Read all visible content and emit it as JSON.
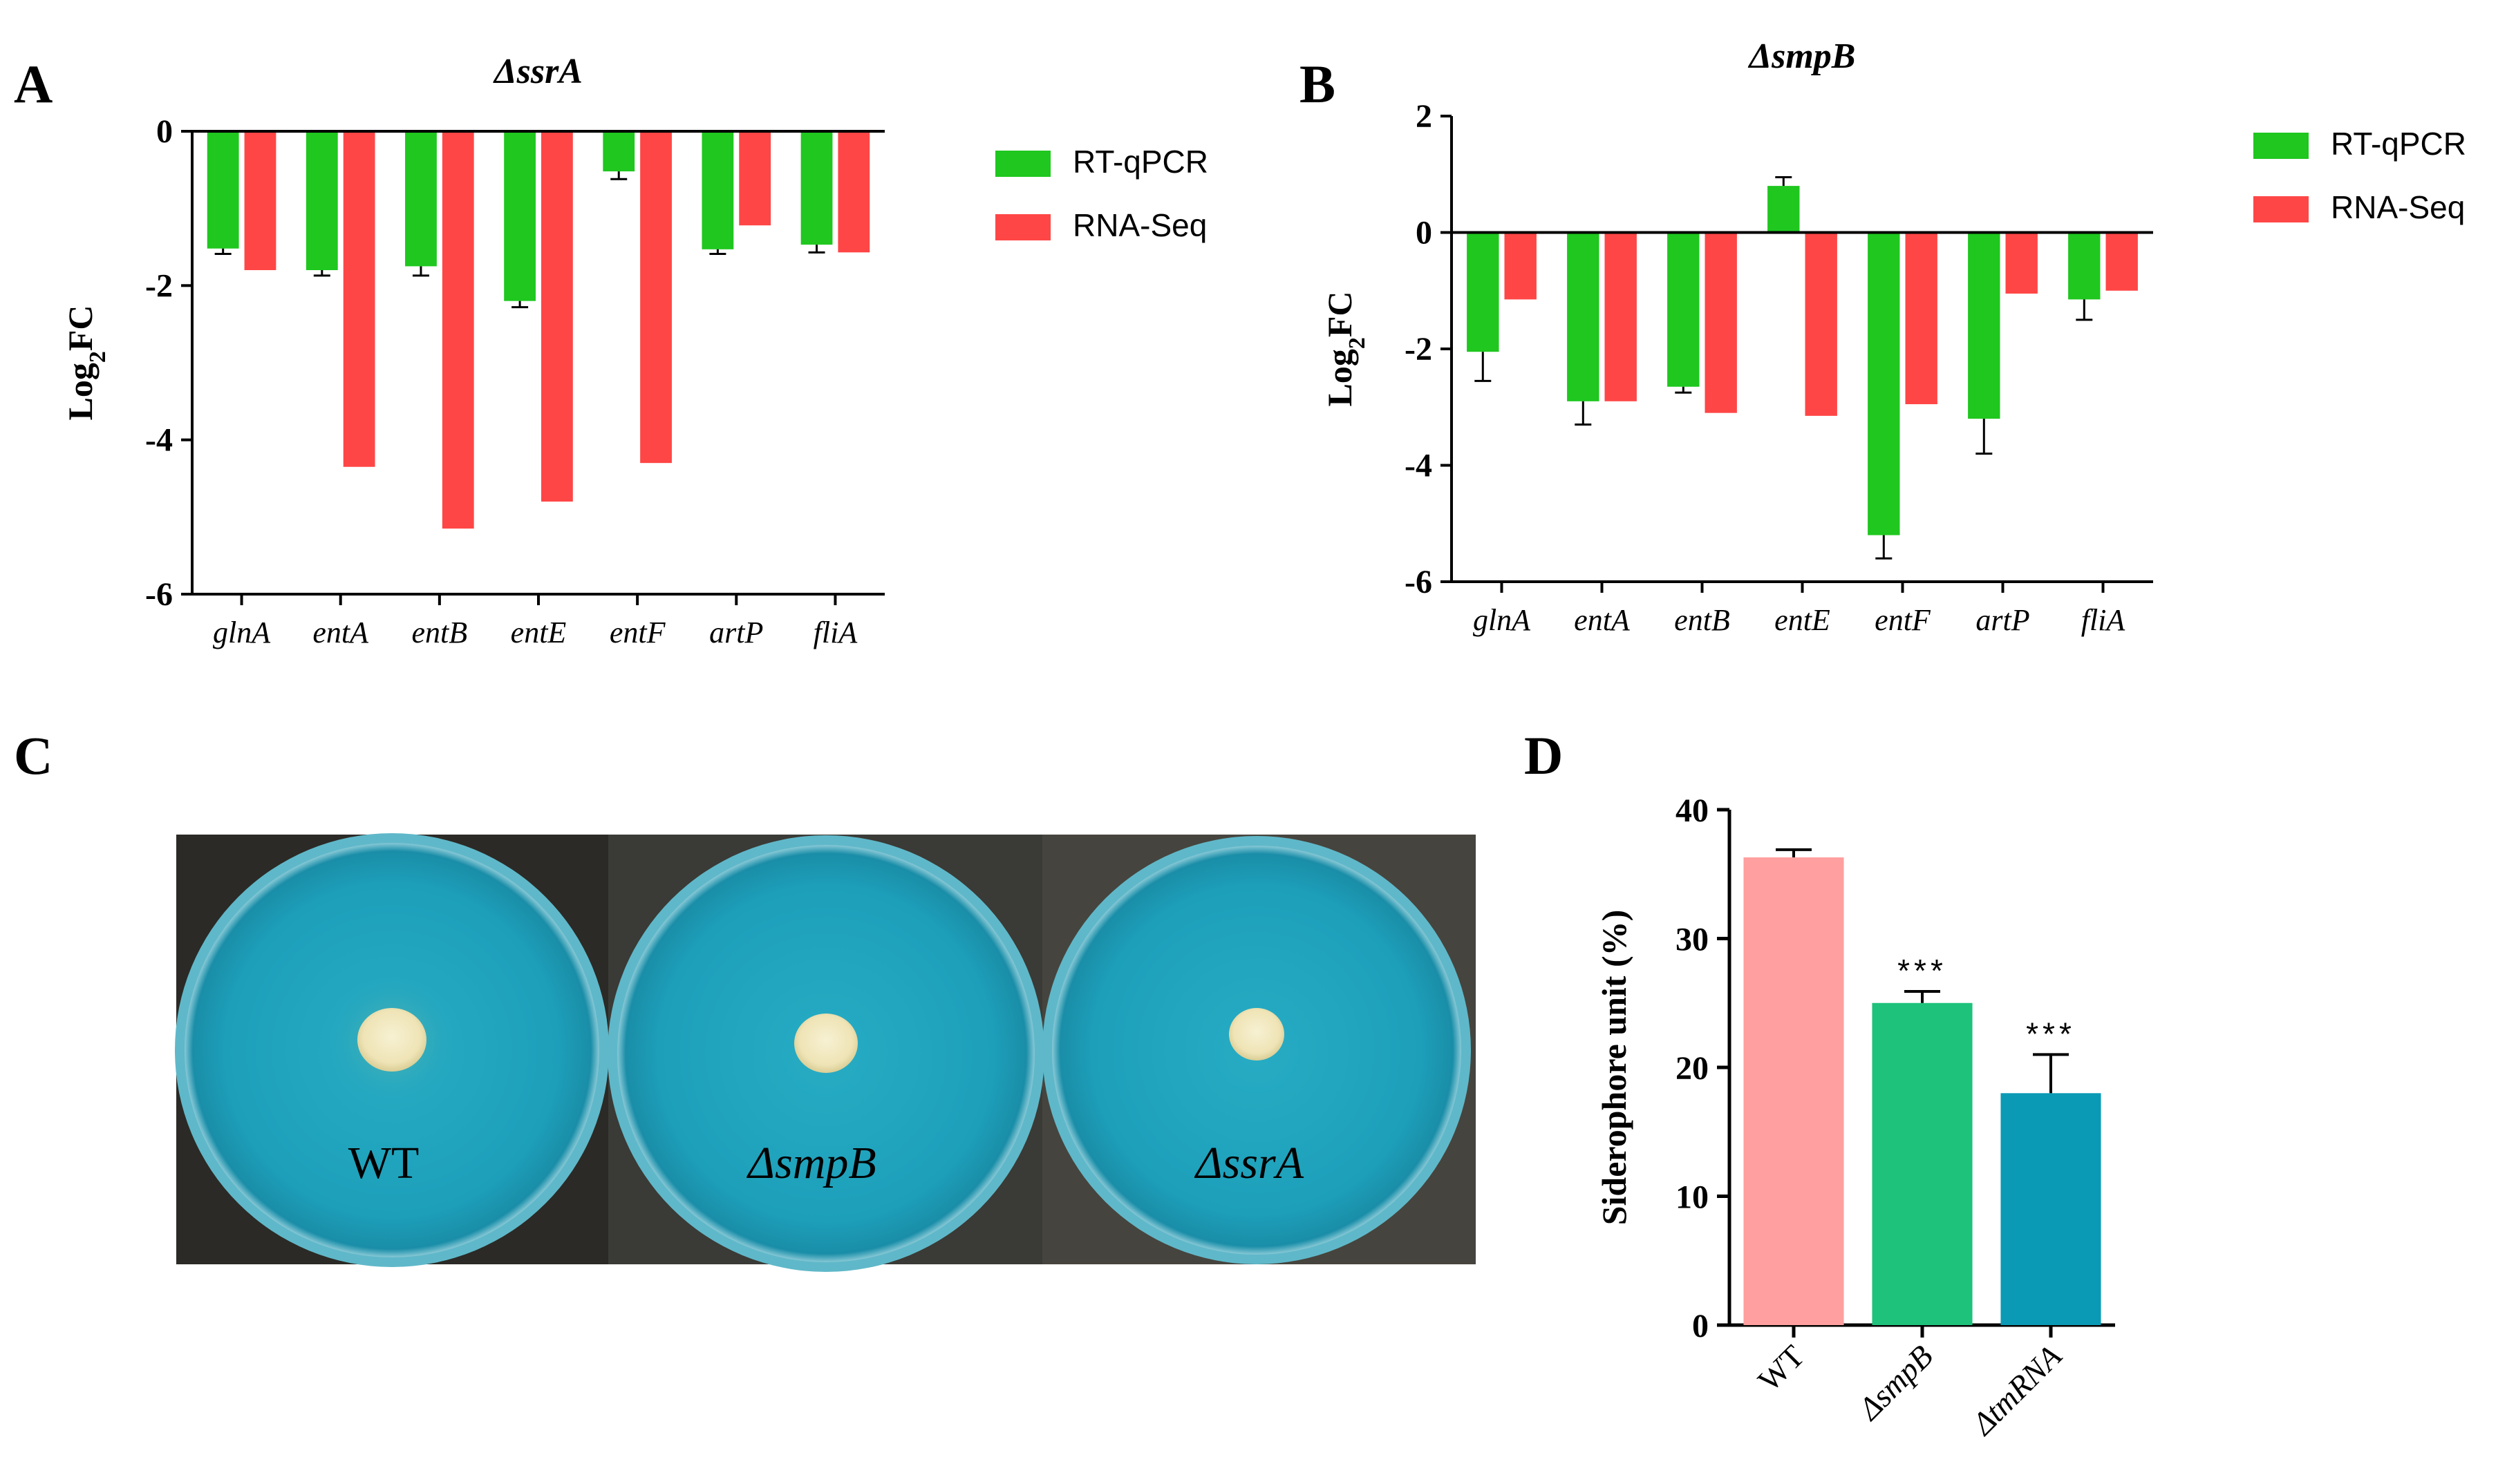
{
  "panels": {
    "a": "A",
    "b": "B",
    "c": "C",
    "d": "D"
  },
  "chart_data": [
    {
      "id": "A",
      "type": "bar",
      "title": "ΔssrA",
      "ylabel": "Log2FC",
      "ylabel_main": "Log",
      "ylabel_sub": "2",
      "ylabel_tail": "FC",
      "categories": [
        "glnA",
        "entA",
        "entB",
        "entE",
        "entF",
        "artP",
        "fliA"
      ],
      "ylim": [
        -6,
        0
      ],
      "yticks": [
        0,
        -2,
        -4,
        -6
      ],
      "legend": "top-right",
      "series": [
        {
          "name": "RT-qPCR",
          "color": "#1fc71f",
          "values": [
            -1.52,
            -1.8,
            -1.75,
            -2.2,
            -0.52,
            -1.53,
            -1.47
          ],
          "errors": [
            0.07,
            0.07,
            0.12,
            0.08,
            0.1,
            0.06,
            0.1
          ]
        },
        {
          "name": "RNA-Seq",
          "color": "#ff4646",
          "values": [
            -1.8,
            -4.35,
            -5.15,
            -4.8,
            -4.3,
            -1.22,
            -1.57
          ],
          "errors": [
            0,
            0,
            0,
            0,
            0,
            0,
            0
          ]
        }
      ]
    },
    {
      "id": "B",
      "type": "bar",
      "title": "ΔsmpB",
      "ylabel": "Log2FC",
      "ylabel_main": "Log",
      "ylabel_sub": "2",
      "ylabel_tail": "FC",
      "categories": [
        "glnA",
        "entA",
        "entB",
        "entE",
        "entF",
        "artP",
        "fliA"
      ],
      "ylim": [
        -6,
        2
      ],
      "yticks": [
        2,
        0,
        -2,
        -4,
        -6
      ],
      "legend": "top-right",
      "series": [
        {
          "name": "RT-qPCR",
          "color": "#1fc71f",
          "values": [
            -2.05,
            -2.9,
            -2.65,
            0.8,
            -5.2,
            -3.2,
            -1.15
          ],
          "errors": [
            0.5,
            0.4,
            0.1,
            0.15,
            0.4,
            0.6,
            0.35
          ]
        },
        {
          "name": "RNA-Seq",
          "color": "#ff4646",
          "values": [
            -1.15,
            -2.9,
            -3.1,
            -3.15,
            -2.95,
            -1.05,
            -1.0
          ],
          "errors": [
            0,
            0,
            0,
            0,
            0,
            0,
            0
          ]
        }
      ]
    },
    {
      "id": "D",
      "type": "bar",
      "categories": [
        "WT",
        "ΔsmpB",
        "ΔtmRNA"
      ],
      "category_styles": [
        "normal",
        "italic",
        "italic"
      ],
      "values": [
        36.3,
        25.0,
        18.0
      ],
      "errors": [
        0.6,
        0.9,
        3.0
      ],
      "colors": [
        "#ff9f9f",
        "#1ec27b",
        "#0b9ab5"
      ],
      "significance": [
        "",
        "***",
        "***"
      ],
      "ylabel": "Siderophore unit  (%)",
      "ylim": [
        0,
        40
      ],
      "yticks": [
        0,
        10,
        20,
        30,
        40
      ],
      "grid": false
    }
  ],
  "plates": {
    "labels": [
      "WT",
      "ΔsmpB",
      "ΔssrA"
    ],
    "label_styles": [
      "normal",
      "italic",
      "italic"
    ],
    "medium_color": "#1fa3bc",
    "colony_color": "#f3ecc6"
  }
}
